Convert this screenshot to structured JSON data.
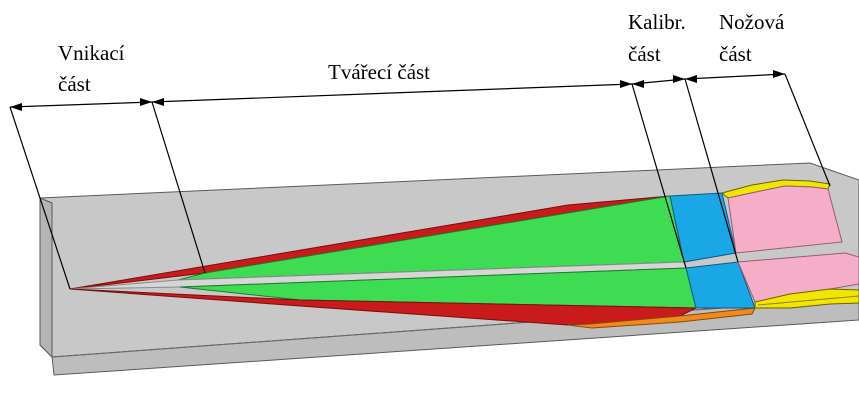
{
  "labels": {
    "vnikaci_line1": "Vnikací",
    "vnikaci_line2": "část",
    "tvareci": "Tvářecí část",
    "kalibr_line1": "Kalibr.",
    "kalibr_line2": "část",
    "nozova_line1": "Nožová",
    "nozova_line2": "část"
  },
  "colors": {
    "plate_top": "#c8c8c8",
    "plate_front": "#bdbdbd",
    "plate_edge": "#5a5a5a",
    "forming_green": "#3ddc52",
    "forming_red": "#c91b1b",
    "calibration_blue": "#1aa7e6",
    "knife_pink": "#f5aec8",
    "knife_yellow": "#f2e600",
    "orange_edge": "#ee8a1e",
    "dimension_line": "#000000"
  }
}
